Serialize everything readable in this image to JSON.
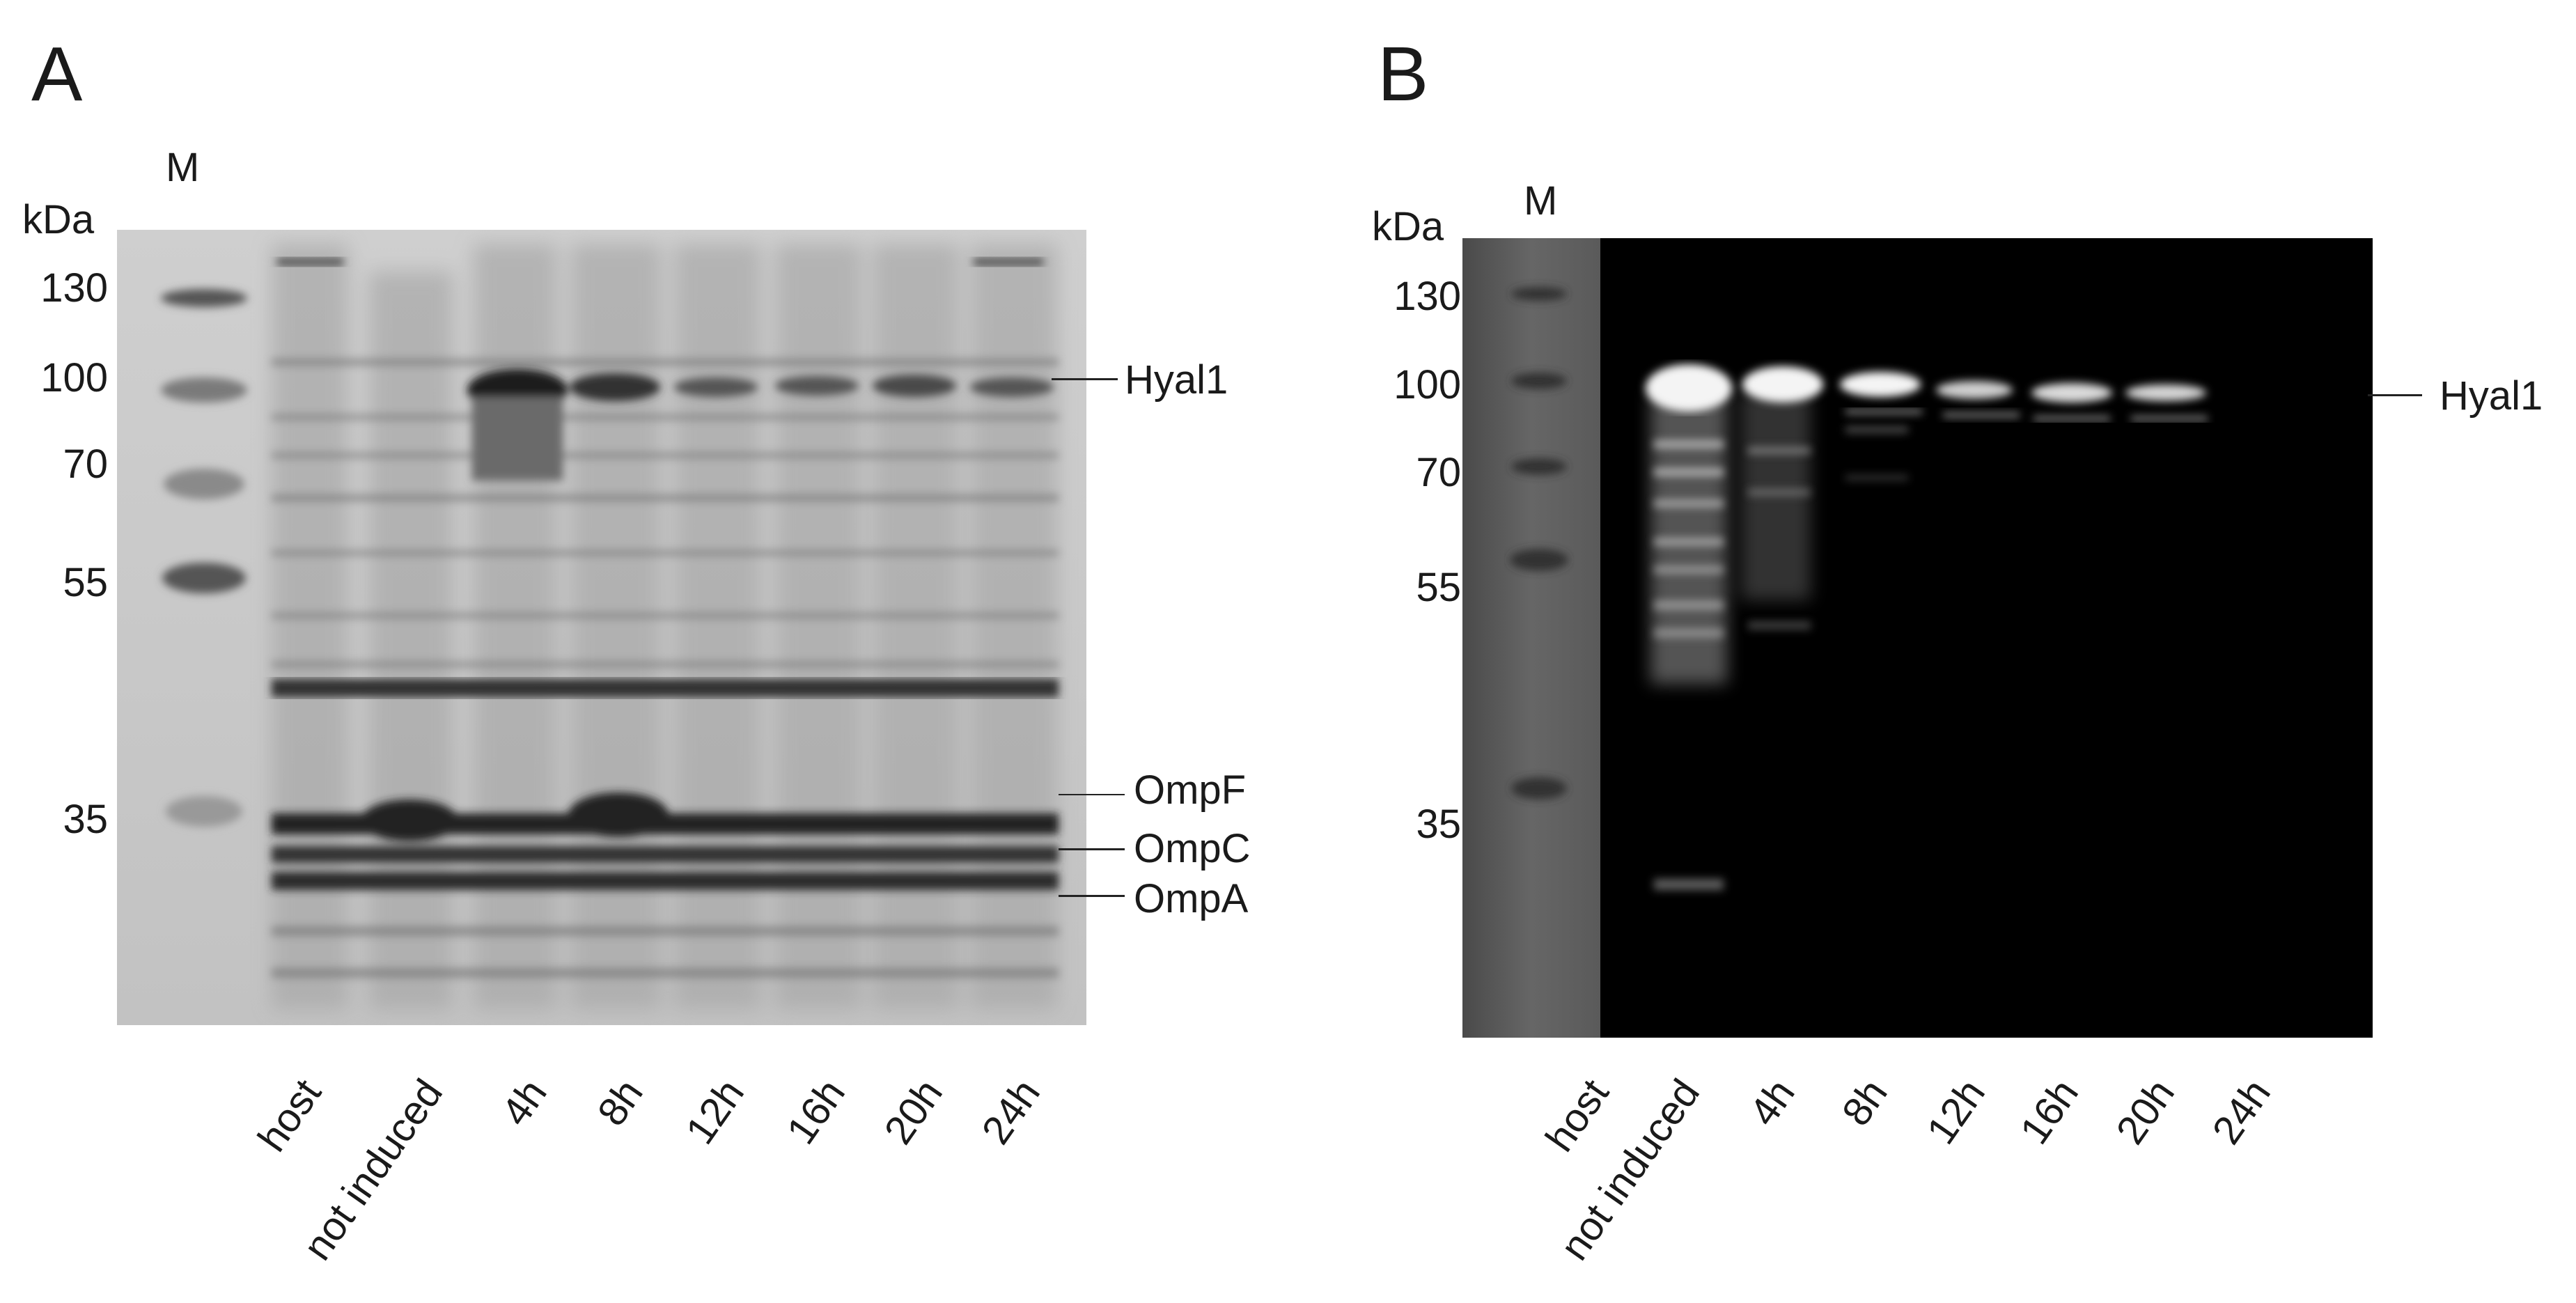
{
  "panel_a": {
    "letter": "A",
    "marker_label": "M",
    "unit": "kDa",
    "mw_ladder": [
      "130",
      "100",
      "70",
      "55",
      "35"
    ],
    "lanes": [
      "host",
      "not induced",
      "4h",
      "8h",
      "12h",
      "16h",
      "20h",
      "24h"
    ],
    "band_labels": [
      "Hyal1",
      "OmpF",
      "OmpC",
      "OmpA"
    ]
  },
  "panel_b": {
    "letter": "B",
    "marker_label": "M",
    "unit": "kDa",
    "mw_ladder": [
      "130",
      "100",
      "70",
      "55",
      "35"
    ],
    "lanes": [
      "host",
      "not induced",
      "4h",
      "8h",
      "12h",
      "16h",
      "20h",
      "24h"
    ],
    "band_labels": [
      "Hyal1"
    ]
  },
  "colors": {
    "gel_a_bg": "#c9c9c9",
    "gel_a_band": "#2a2a2a",
    "gel_b_bg": "#000000",
    "gel_b_marker_strip": "#555555",
    "gel_b_band": "#f0f0f0"
  }
}
